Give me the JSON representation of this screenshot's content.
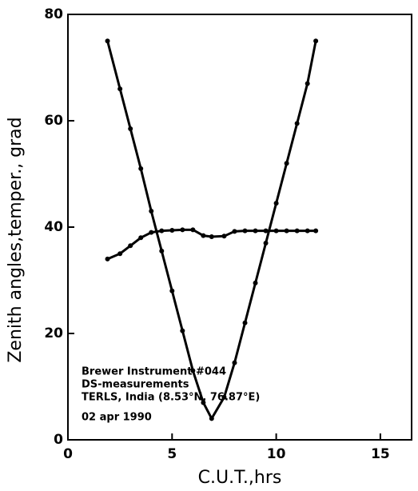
{
  "chart_data": {
    "type": "scatter",
    "xlabel": "C.U.T.,hrs",
    "ylabel": "Zenith angles,temper., grad",
    "annotations": [
      "Brewer Instrument #044",
      "DS-measurements",
      "TERLS, India (8.53°N, 76.87°E)",
      "02 apr 1990"
    ],
    "x": [
      1.9,
      2.5,
      3,
      3.5,
      4,
      4.5,
      5,
      5.5,
      6,
      6.5,
      6.9,
      7.5,
      8,
      8.5,
      9,
      9.5,
      10,
      10.5,
      11,
      11.5,
      11.9
    ],
    "series": [
      {
        "color": "#000000",
        "values": [
          75,
          66,
          58.5,
          51,
          43,
          35.5,
          28,
          20.5,
          13,
          7,
          4,
          8,
          14.5,
          22,
          29.5,
          37,
          44.5,
          52,
          59.5,
          67,
          75
        ]
      },
      {
        "color": "#000000",
        "values": [
          34,
          35,
          36.5,
          38,
          39,
          39.3,
          39.4,
          39.5,
          39.5,
          38.4,
          38.2,
          38.3,
          39.2,
          39.3,
          39.3,
          39.3,
          39.3,
          39.3,
          39.3,
          39.3,
          39.3
        ]
      }
    ],
    "xlim": [
      0,
      16.5
    ],
    "ylim": [
      0,
      80
    ],
    "xticks": [
      0,
      5,
      10,
      15
    ],
    "yticks": [
      0,
      20,
      40,
      60,
      80
    ],
    "grid": false
  }
}
